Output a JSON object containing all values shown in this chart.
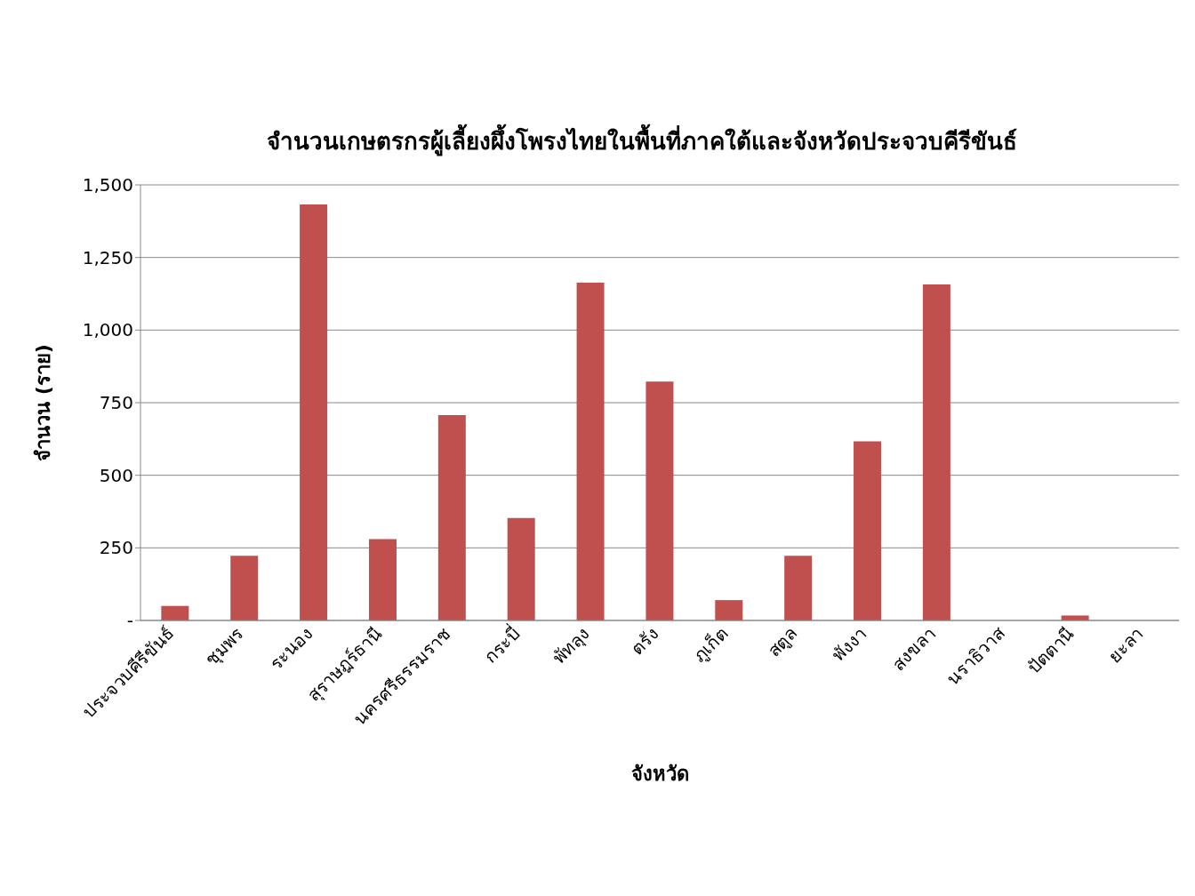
{
  "chart_data": {
    "type": "bar",
    "title": "จำนวนเกษตรกรผู้เลี้ยงผึ้งโพรงไทยในพื้นที่ภาคใต้และจังหวัดประจวบคีรีขันธ์",
    "xlabel": "จังหวัด",
    "ylabel": "จำนวน (ราย)",
    "categories": [
      "ประจวบคีรีขันธ์",
      "ชุมพร",
      "ระนอง",
      "สุราษฎร์ธานี",
      "นครศรีธรรมราช",
      "กระบี่",
      "พัทลุง",
      "ตรัง",
      "ภูเก็ต",
      "สตูล",
      "พังงา",
      "สงขลา",
      "นราธิวาส",
      "ปัตตานี",
      "ยะลา"
    ],
    "values": [
      50,
      223,
      1433,
      280,
      707,
      353,
      1163,
      823,
      70,
      223,
      617,
      1157,
      0,
      17,
      0
    ],
    "color": "#c0504d",
    "ylim": [
      0,
      1500
    ],
    "yticks": [
      {
        "value": 0,
        "label": "-"
      },
      {
        "value": 250,
        "label": "250"
      },
      {
        "value": 500,
        "label": "500"
      },
      {
        "value": 750,
        "label": "750"
      },
      {
        "value": 1000,
        "label": "1,000"
      },
      {
        "value": 1250,
        "label": "1,250"
      },
      {
        "value": 1500,
        "label": "1,500"
      }
    ],
    "grid": "y"
  }
}
